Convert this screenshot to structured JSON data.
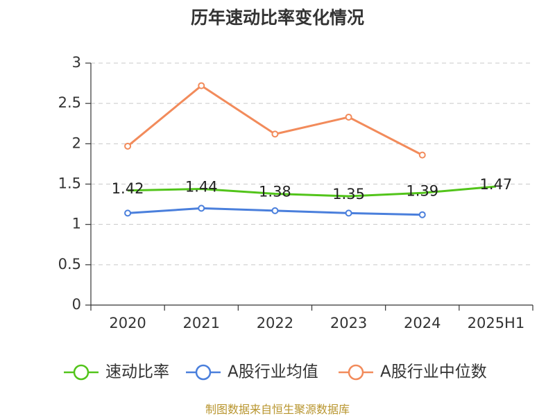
{
  "chart_data": {
    "type": "line",
    "title": "历年速动比率变化情况",
    "categories": [
      "2020",
      "2021",
      "2022",
      "2023",
      "2024",
      "2025H1"
    ],
    "yticks": [
      "0",
      "0.5",
      "1",
      "1.5",
      "2",
      "2.5",
      "3"
    ],
    "ylim": [
      0,
      3
    ],
    "grid": true,
    "legend_position": "bottom",
    "series": [
      {
        "name": "速动比率",
        "color": "#52c41a",
        "values": [
          1.42,
          1.44,
          1.38,
          1.35,
          1.39,
          1.47
        ],
        "labels": [
          "1.42",
          "1.44",
          "1.38",
          "1.35",
          "1.39",
          "1.47"
        ],
        "show_markers": false,
        "show_labels": true
      },
      {
        "name": "A股行业均值",
        "color": "#4a7fdc",
        "values": [
          1.14,
          1.2,
          1.17,
          1.14,
          1.12,
          null
        ],
        "show_markers": true,
        "show_labels": false
      },
      {
        "name": "A股行业中位数",
        "color": "#f28b5b",
        "values": [
          1.97,
          2.72,
          2.12,
          2.33,
          1.86,
          null
        ],
        "show_markers": true,
        "show_labels": false
      }
    ]
  },
  "source": "制图数据来自恒生聚源数据库"
}
